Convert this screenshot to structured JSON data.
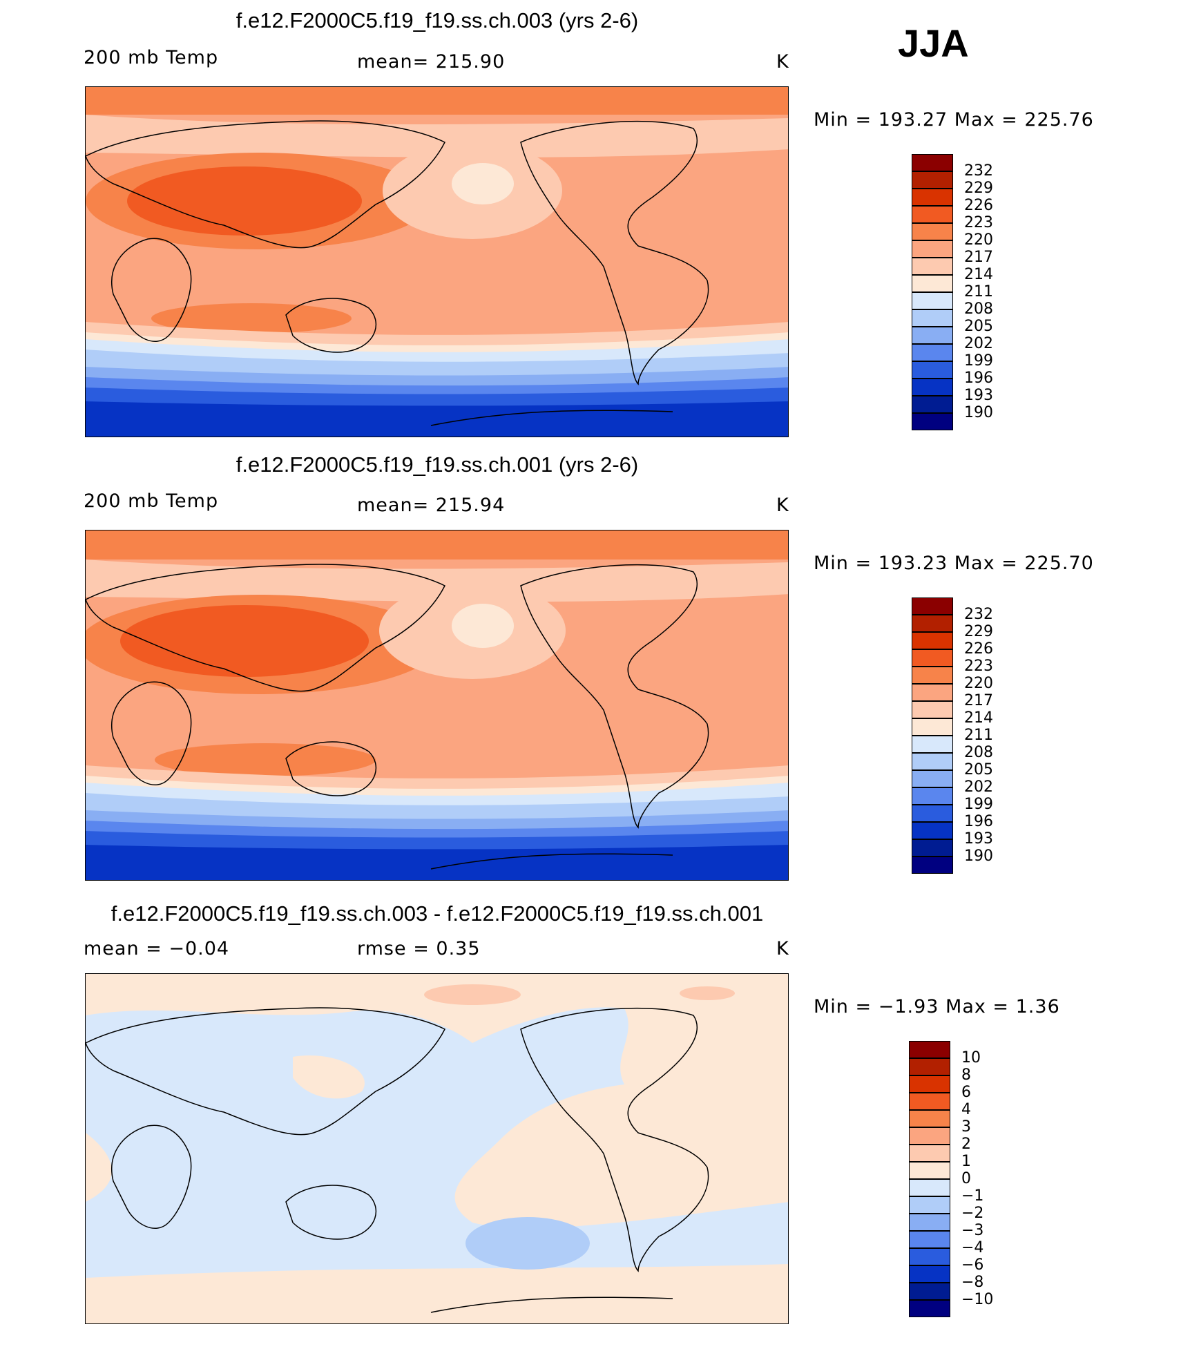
{
  "season": "JJA",
  "panels": [
    {
      "title": "f.e12.F2000C5.f19_f19.ss.ch.003 (yrs 2-6)",
      "left_label": "200 mb Temp",
      "center_label": "mean=  215.90",
      "units": "K",
      "minmax": "Min  =  193.27  Max  =  225.76",
      "colorbar_ticks": [
        "232",
        "229",
        "226",
        "223",
        "220",
        "217",
        "214",
        "211",
        "208",
        "205",
        "202",
        "199",
        "196",
        "193",
        "190"
      ]
    },
    {
      "title": "f.e12.F2000C5.f19_f19.ss.ch.001 (yrs 2-6)",
      "left_label": "200 mb Temp",
      "center_label": "mean=  215.94",
      "units": "K",
      "minmax": "Min  =  193.23  Max  =  225.70",
      "colorbar_ticks": [
        "232",
        "229",
        "226",
        "223",
        "220",
        "217",
        "214",
        "211",
        "208",
        "205",
        "202",
        "199",
        "196",
        "193",
        "190"
      ]
    },
    {
      "title": "f.e12.F2000C5.f19_f19.ss.ch.003 - f.e12.F2000C5.f19_f19.ss.ch.001",
      "left_label": "mean  =   −0.04",
      "center_label": "rmse  =     0.35",
      "units": "K",
      "minmax": "Min  =    −1.93  Max  =     1.36",
      "colorbar_ticks": [
        "10",
        "8",
        "6",
        "4",
        "3",
        "2",
        "1",
        "0",
        "−1",
        "−2",
        "−3",
        "−4",
        "−6",
        "−8",
        "−10"
      ]
    }
  ],
  "colors": {
    "abs_palette": [
      "#8b0000",
      "#b22000",
      "#d93300",
      "#f15a22",
      "#f7834a",
      "#fba580",
      "#fdcab0",
      "#fde8d6",
      "#d8e8fb",
      "#b0cdf8",
      "#89aef3",
      "#5a86ee",
      "#2a5cde",
      "#0633c4",
      "#001c92",
      "#000080"
    ],
    "diff_palette": [
      "#8b0000",
      "#b22000",
      "#d93300",
      "#f15a22",
      "#f7834a",
      "#fba580",
      "#fdcab0",
      "#fde8d6",
      "#d8e8fb",
      "#b0cdf8",
      "#89aef3",
      "#5a86ee",
      "#2a5cde",
      "#0633c4",
      "#001c92",
      "#000080"
    ]
  },
  "chart_data": [
    {
      "type": "heatmap",
      "title": "f.e12.F2000C5.f19_f19.ss.ch.003 (yrs 2-6)",
      "variable": "200 mb Temp",
      "units": "K",
      "mean": 215.9,
      "min": 193.27,
      "max": 225.76,
      "contour_levels": [
        190,
        193,
        196,
        199,
        202,
        205,
        208,
        211,
        214,
        217,
        220,
        223,
        226,
        229,
        232
      ],
      "x_domain": "longitude, 0 to 360",
      "y_domain": "latitude, -90 to 90"
    },
    {
      "type": "heatmap",
      "title": "f.e12.F2000C5.f19_f19.ss.ch.001 (yrs 2-6)",
      "variable": "200 mb Temp",
      "units": "K",
      "mean": 215.94,
      "min": 193.23,
      "max": 225.7,
      "contour_levels": [
        190,
        193,
        196,
        199,
        202,
        205,
        208,
        211,
        214,
        217,
        220,
        223,
        226,
        229,
        232
      ],
      "x_domain": "longitude, 0 to 360",
      "y_domain": "latitude, -90 to 90"
    },
    {
      "type": "heatmap",
      "title": "f.e12.F2000C5.f19_f19.ss.ch.003 - f.e12.F2000C5.f19_f19.ss.ch.001",
      "units": "K",
      "mean": -0.04,
      "rmse": 0.35,
      "min": -1.93,
      "max": 1.36,
      "contour_levels": [
        -10,
        -8,
        -6,
        -4,
        -3,
        -2,
        -1,
        0,
        1,
        2,
        3,
        4,
        6,
        8,
        10
      ],
      "x_domain": "longitude, 0 to 360",
      "y_domain": "latitude, -90 to 90"
    }
  ]
}
